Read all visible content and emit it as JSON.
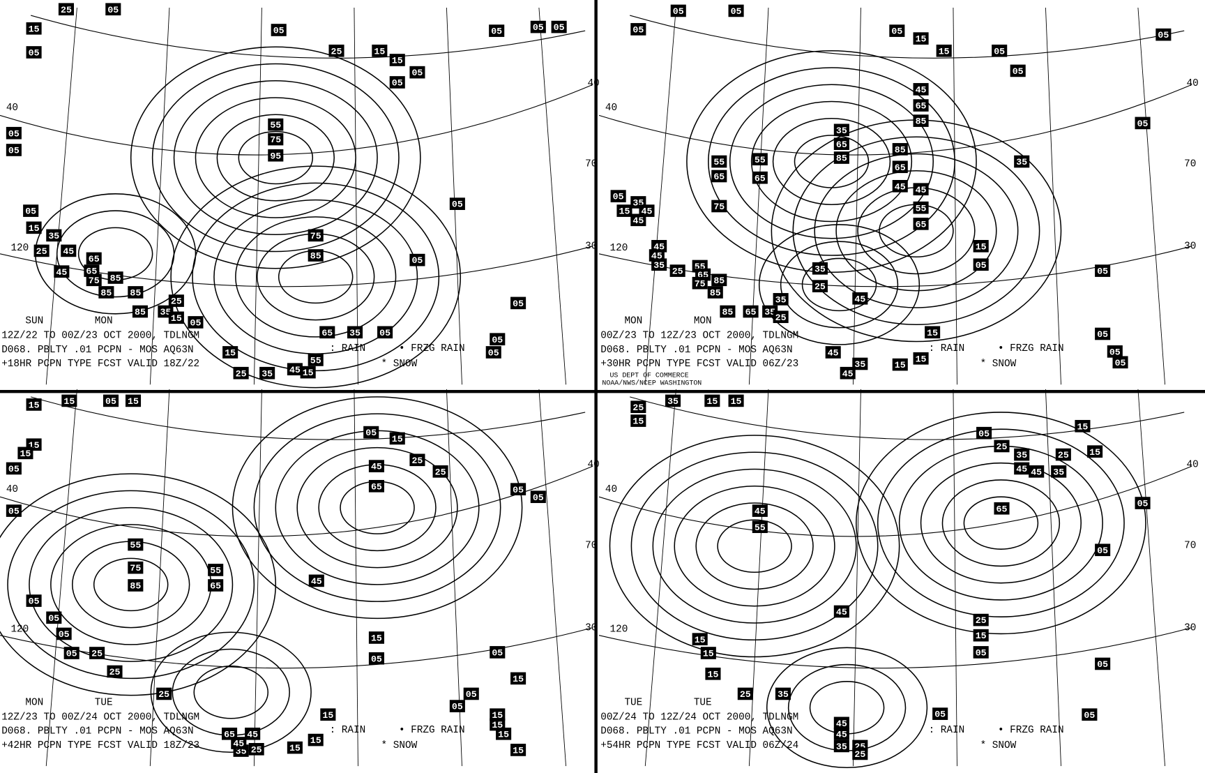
{
  "panels": [
    {
      "days": [
        "SUN",
        "MON"
      ],
      "lines": [
        "12Z/22 TO 00Z/23 OCT 2000, TDLNGM",
        "D068. PBLTY .01 PCPN - MOS AQ63N",
        "+18HR PCPN TYPE FCST VALID 18Z/22"
      ],
      "legend": [
        ": RAIN",
        "• FRZG RAIN",
        "* SNOW"
      ],
      "grid_labels": [
        "40",
        "120",
        "40",
        "70",
        "30"
      ],
      "contour_labels": [
        "25",
        "05",
        "15",
        "05",
        "05",
        "25",
        "15",
        "15",
        "05",
        "05",
        "55",
        "75",
        "95",
        "05",
        "05",
        "05",
        "15",
        "35",
        "25",
        "45",
        "65",
        "65",
        "75",
        "85",
        "45",
        "85",
        "85",
        "85",
        "35",
        "25",
        "15",
        "05",
        "75",
        "85",
        "05",
        "05",
        "05",
        "65",
        "35",
        "05",
        "15",
        "55",
        "45",
        "15",
        "25",
        "35",
        "05",
        "05",
        "05",
        "05",
        "05"
      ]
    },
    {
      "days": [
        "MON",
        "MON"
      ],
      "lines": [
        "00Z/23 TO 12Z/23 OCT 2000, TDLNGM",
        "D068. PBLTY .01 PCPN - MOS AQ63N",
        "+30HR PCPN TYPE FCST VALID 06Z/23"
      ],
      "legend": [
        ": RAIN",
        "• FRZG RAIN",
        "* SNOW"
      ],
      "grid_labels": [
        "40",
        "120",
        "40",
        "70",
        "30"
      ],
      "contour_labels": [
        "05",
        "05",
        "05",
        "05",
        "15",
        "15",
        "05",
        "05",
        "05",
        "05",
        "45",
        "65",
        "85",
        "35",
        "65",
        "85",
        "85",
        "65",
        "35",
        "55",
        "55",
        "65",
        "65",
        "45",
        "45",
        "55",
        "65",
        "75",
        "05",
        "35",
        "15",
        "45",
        "45",
        "45",
        "45",
        "35",
        "25",
        "55",
        "65",
        "75",
        "85",
        "85",
        "85",
        "65",
        "35",
        "25",
        "35",
        "35",
        "25",
        "45",
        "15",
        "05",
        "05",
        "15",
        "05",
        "05",
        "05",
        "15",
        "15",
        "35",
        "45",
        "45"
      ]
    },
    {
      "days": [
        "MON",
        "TUE"
      ],
      "lines": [
        "12Z/23 TO 00Z/24 OCT 2000, TDLNGM",
        "D068. PBLTY .01 PCPN - MOS AQ63N",
        "+42HR PCPN TYPE FCST VALID 18Z/23"
      ],
      "legend": [
        ": RAIN",
        "• FRZG RAIN",
        "* SNOW"
      ],
      "grid_labels": [
        "40",
        "120",
        "40",
        "70",
        "30"
      ],
      "contour_labels": [
        "15",
        "15",
        "05",
        "15",
        "15",
        "15",
        "05",
        "05",
        "05",
        "15",
        "25",
        "25",
        "45",
        "65",
        "05",
        "05",
        "55",
        "75",
        "85",
        "55",
        "65",
        "45",
        "05",
        "05",
        "05",
        "05",
        "25",
        "25",
        "25",
        "15",
        "05",
        "05",
        "15",
        "15",
        "05",
        "05",
        "15",
        "15",
        "15",
        "15",
        "15",
        "15",
        "65",
        "45",
        "35",
        "25",
        "45"
      ]
    },
    {
      "days": [
        "TUE",
        "TUE"
      ],
      "lines": [
        "00Z/24 TO 12Z/24 OCT 2000, TDLNGM",
        "D068. PBLTY .01 PCPN - MOS AQ63N",
        "+54HR PCPN TYPE FCST VALID 06Z/24"
      ],
      "legend": [
        ": RAIN",
        "• FRZG RAIN",
        "* SNOW"
      ],
      "grid_labels": [
        "40",
        "120",
        "40",
        "70",
        "30"
      ],
      "contour_labels": [
        "25",
        "35",
        "15",
        "15",
        "15",
        "05",
        "25",
        "35",
        "25",
        "15",
        "15",
        "45",
        "45",
        "35",
        "65",
        "05",
        "05",
        "45",
        "55",
        "45",
        "25",
        "15",
        "05",
        "05",
        "15",
        "15",
        "15",
        "25",
        "35",
        "05",
        "05",
        "45",
        "45",
        "35",
        "25",
        "25"
      ]
    }
  ],
  "credit": [
    "US DEPT OF COMMERCE",
    "NOAA/NWS/NCEP WASHINGTON"
  ]
}
